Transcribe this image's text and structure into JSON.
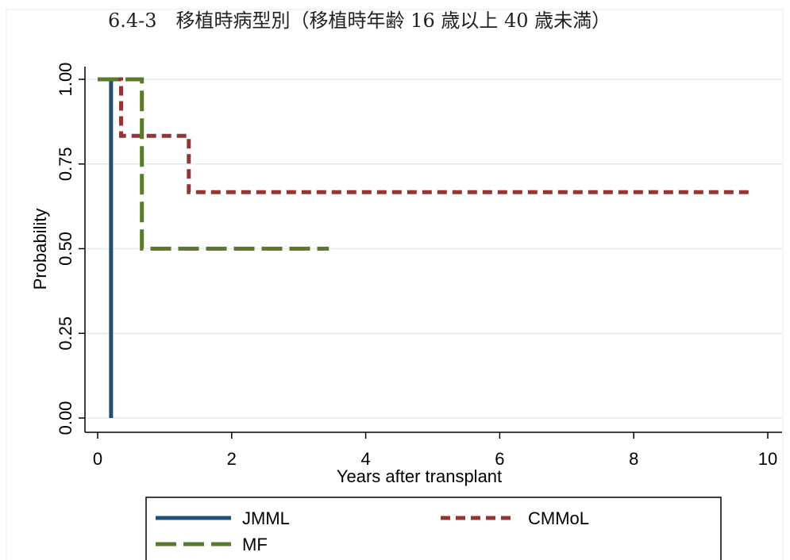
{
  "caption": "6.4-3　移植時病型別（移植時年齢 16 歳以上 40 歳未満）",
  "chart_data": {
    "type": "line",
    "step": true,
    "title": "",
    "xlabel": "Years after transplant",
    "ylabel": "Probability",
    "xlim": [
      0,
      10
    ],
    "ylim": [
      0,
      1
    ],
    "xticks": [
      "0",
      "2",
      "4",
      "6",
      "8",
      "10"
    ],
    "yticks": [
      "0.00",
      "0.25",
      "0.50",
      "0.75",
      "1.00"
    ],
    "grid": true,
    "legend_position": "bottom",
    "series": [
      {
        "name": "JMML",
        "color": "#1f4e79",
        "dash": "solid",
        "x": [
          0.0,
          0.2,
          0.2
        ],
        "y": [
          1.0,
          1.0,
          0.0
        ]
      },
      {
        "name": "CMMoL",
        "color": "#943434",
        "dash": "dash",
        "x": [
          0.0,
          0.35,
          0.35,
          1.36,
          1.36,
          9.75
        ],
        "y": [
          1.0,
          1.0,
          0.833,
          0.833,
          0.667,
          0.667
        ]
      },
      {
        "name": "MF",
        "color": "#5a7a2e",
        "dash": "longdash",
        "x": [
          0.0,
          0.66,
          0.66,
          3.45
        ],
        "y": [
          1.0,
          1.0,
          0.5,
          0.5
        ]
      }
    ]
  }
}
